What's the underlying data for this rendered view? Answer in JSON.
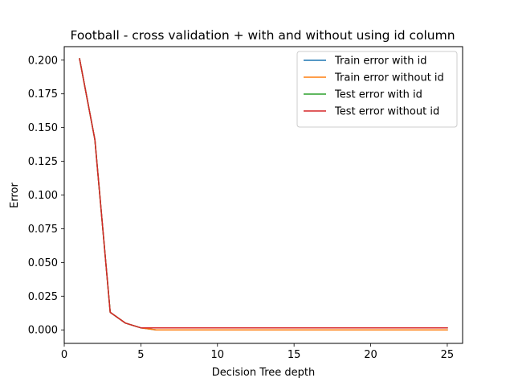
{
  "chart_data": {
    "type": "line",
    "title": "Football - cross validation + with and without using id column",
    "xlabel": "Decision Tree depth",
    "ylabel": "Error",
    "xlim": [
      0,
      26
    ],
    "ylim": [
      -0.01,
      0.21
    ],
    "xticks": [
      0,
      5,
      10,
      15,
      20,
      25
    ],
    "yticks": [
      0.0,
      0.025,
      0.05,
      0.075,
      0.1,
      0.125,
      0.15,
      0.175,
      0.2
    ],
    "ytick_labels": [
      "0.000",
      "0.025",
      "0.050",
      "0.075",
      "0.100",
      "0.125",
      "0.150",
      "0.175",
      "0.200"
    ],
    "x": [
      1,
      2,
      3,
      4,
      5,
      6,
      7,
      8,
      9,
      10,
      11,
      12,
      13,
      14,
      15,
      16,
      17,
      18,
      19,
      20,
      21,
      22,
      23,
      24,
      25
    ],
    "legend_position": "upper right",
    "series": [
      {
        "name": "Train error with id",
        "color": "#1f77b4",
        "values": [
          0.201,
          0.141,
          0.013,
          0.005,
          0.0015,
          0.0,
          0.0,
          0.0,
          0.0,
          0.0,
          0.0,
          0.0,
          0.0,
          0.0,
          0.0,
          0.0,
          0.0,
          0.0,
          0.0,
          0.0,
          0.0,
          0.0,
          0.0,
          0.0,
          0.0
        ]
      },
      {
        "name": "Train error without id",
        "color": "#ff7f0e",
        "values": [
          0.201,
          0.141,
          0.013,
          0.005,
          0.0015,
          0.0,
          0.0,
          0.0,
          0.0,
          0.0,
          0.0,
          0.0,
          0.0,
          0.0,
          0.0,
          0.0,
          0.0,
          0.0,
          0.0,
          0.0,
          0.0,
          0.0,
          0.0,
          0.0,
          0.0
        ]
      },
      {
        "name": "Test error with id",
        "color": "#2ca02c",
        "values": [
          0.201,
          0.141,
          0.013,
          0.005,
          0.0015,
          0.0015,
          0.0015,
          0.0015,
          0.0015,
          0.0015,
          0.0015,
          0.0015,
          0.0015,
          0.0015,
          0.0015,
          0.0015,
          0.0015,
          0.0015,
          0.0015,
          0.0015,
          0.0015,
          0.0015,
          0.0015,
          0.0015,
          0.0015
        ]
      },
      {
        "name": "Test error without id",
        "color": "#d62728",
        "values": [
          0.201,
          0.141,
          0.013,
          0.005,
          0.0015,
          0.0015,
          0.0015,
          0.0015,
          0.0015,
          0.0015,
          0.0015,
          0.0015,
          0.0015,
          0.0015,
          0.0015,
          0.0015,
          0.0015,
          0.0015,
          0.0015,
          0.0015,
          0.0015,
          0.0015,
          0.0015,
          0.0015,
          0.0015
        ]
      }
    ]
  }
}
